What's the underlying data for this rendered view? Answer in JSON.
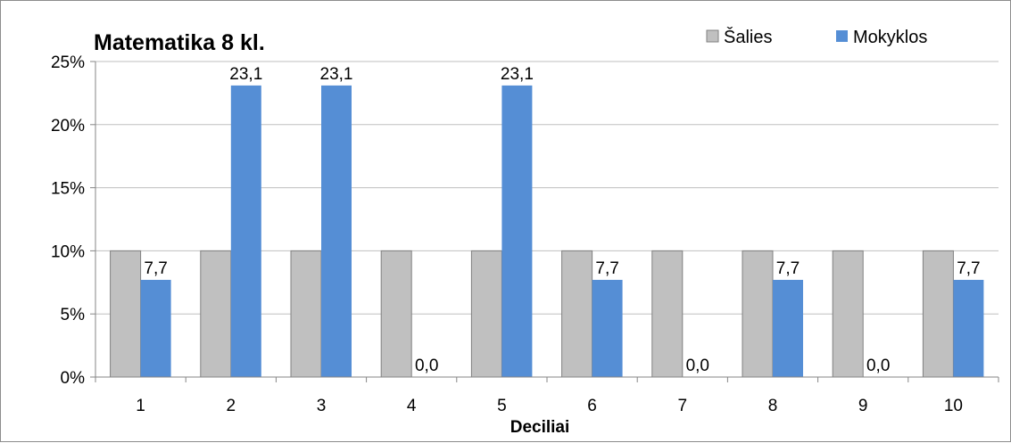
{
  "chart_data": {
    "type": "bar",
    "title": "Matematika 8 kl.",
    "xlabel": "Deciliai",
    "ylabel": "",
    "categories": [
      "1",
      "2",
      "3",
      "4",
      "5",
      "6",
      "7",
      "8",
      "9",
      "10"
    ],
    "ylim": [
      0,
      25
    ],
    "yticks": [
      0,
      5,
      10,
      15,
      20,
      25
    ],
    "ytick_labels": [
      "0%",
      "5%",
      "10%",
      "15%",
      "20%",
      "25%"
    ],
    "grid": true,
    "legend_position": "top-right",
    "series": [
      {
        "name": "Šalies",
        "color": "#c0c0c0",
        "values": [
          10,
          10,
          10,
          10,
          10,
          10,
          10,
          10,
          10,
          10
        ]
      },
      {
        "name": "Mokyklos",
        "color": "#558ed5",
        "values": [
          7.7,
          23.1,
          23.1,
          0.0,
          23.1,
          7.7,
          0.0,
          7.7,
          0.0,
          7.7
        ],
        "data_labels": [
          "7,7",
          "23,1",
          "23,1",
          "0,0",
          "23,1",
          "7,7",
          "0,0",
          "7,7",
          "0,0",
          "7,7"
        ]
      }
    ]
  }
}
